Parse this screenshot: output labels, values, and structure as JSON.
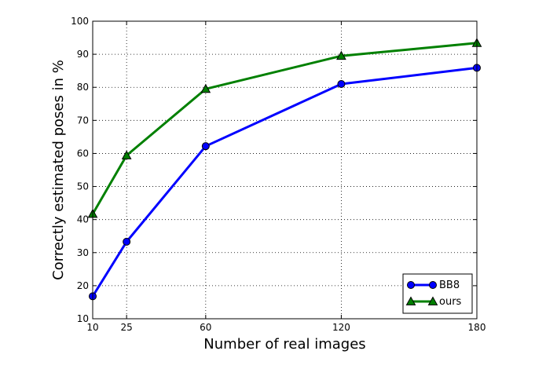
{
  "chart_data": {
    "type": "line",
    "title": "",
    "xlabel": "Number of real images",
    "ylabel": "Correctly estimated poses in %",
    "xlim": [
      10,
      180
    ],
    "ylim": [
      10,
      100
    ],
    "x_ticks": [
      10,
      25,
      60,
      120,
      180
    ],
    "y_ticks": [
      10,
      20,
      30,
      40,
      50,
      60,
      70,
      80,
      90,
      100
    ],
    "grid": true,
    "legend_position": "bottom-right",
    "series": [
      {
        "name": "BB8",
        "color": "#0000ff",
        "marker": "circle",
        "x": [
          10,
          25,
          60,
          120,
          180
        ],
        "values": [
          16.8,
          33.3,
          62.2,
          81.0,
          85.9
        ]
      },
      {
        "name": "ours",
        "color": "#008000",
        "marker": "triangle",
        "x": [
          10,
          25,
          60,
          120,
          180
        ],
        "values": [
          41.7,
          59.4,
          79.5,
          89.5,
          93.4
        ]
      }
    ]
  }
}
